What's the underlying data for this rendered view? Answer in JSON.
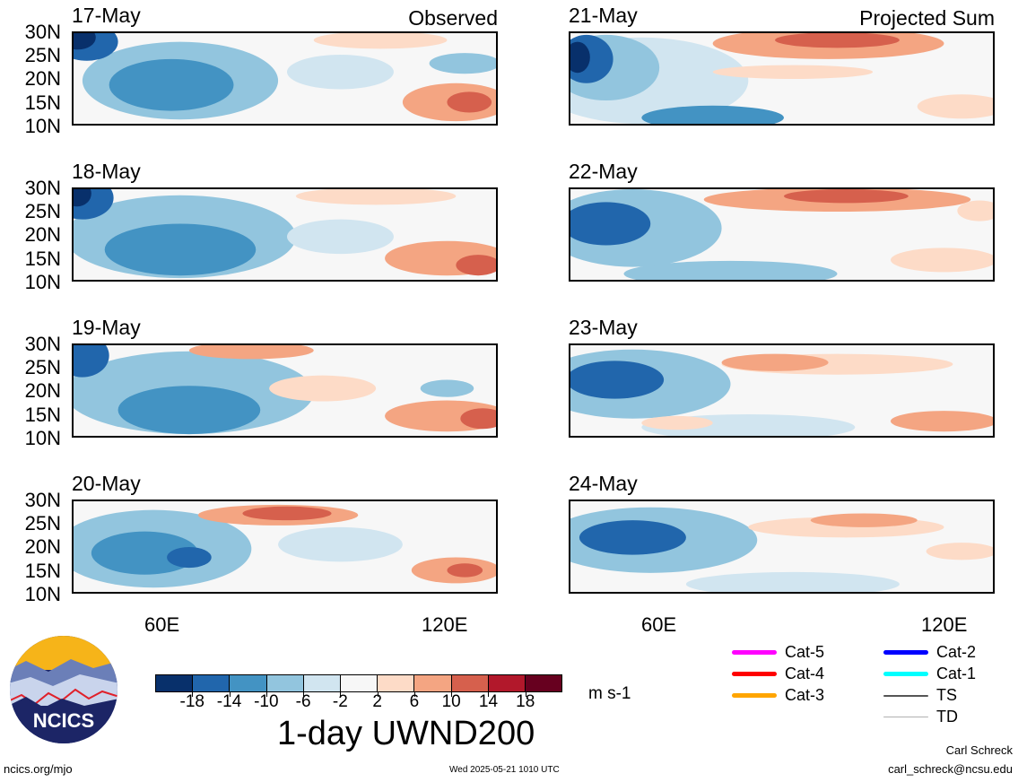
{
  "panels": [
    {
      "date": "17-May",
      "tag": "Observed"
    },
    {
      "date": "21-May",
      "tag": "Projected Sum"
    },
    {
      "date": "18-May",
      "tag": ""
    },
    {
      "date": "22-May",
      "tag": ""
    },
    {
      "date": "19-May",
      "tag": ""
    },
    {
      "date": "23-May",
      "tag": ""
    },
    {
      "date": "20-May",
      "tag": ""
    },
    {
      "date": "24-May",
      "tag": ""
    }
  ],
  "lat_labels": [
    "30N",
    "25N",
    "20N",
    "15N",
    "10N"
  ],
  "lon_labels": [
    "60E",
    "120E"
  ],
  "colorbar": {
    "colors": [
      "#08306b",
      "#2166ac",
      "#4393c3",
      "#92c5de",
      "#d1e5f0",
      "#f7f7f7",
      "#fddbc7",
      "#f4a582",
      "#d6604d",
      "#b2182b",
      "#67001f"
    ],
    "ticks": [
      "-18",
      "-14",
      "-10",
      "-6",
      "-2",
      "2",
      "6",
      "10",
      "14",
      "18"
    ]
  },
  "unit": "m s-1",
  "title": "1-day UWND200",
  "legend": [
    {
      "label": "Cat-5",
      "color": "#ff00ff"
    },
    {
      "label": "Cat-4",
      "color": "#ff0000"
    },
    {
      "label": "Cat-3",
      "color": "#ffa500"
    },
    {
      "label": "Cat-2",
      "color": "#0000ff"
    },
    {
      "label": "Cat-1",
      "color": "#00ffff"
    },
    {
      "label": "TS",
      "color": "#555555"
    },
    {
      "label": "TD",
      "color": "#b0b0b0"
    }
  ],
  "footer": {
    "left": "ncics.org/mjo",
    "center": "Wed 2025-05-21 1010 UTC",
    "author": "Carl Schreck",
    "email": "carl_schreck@ncsu.edu"
  },
  "logo_text": "NCICS"
}
